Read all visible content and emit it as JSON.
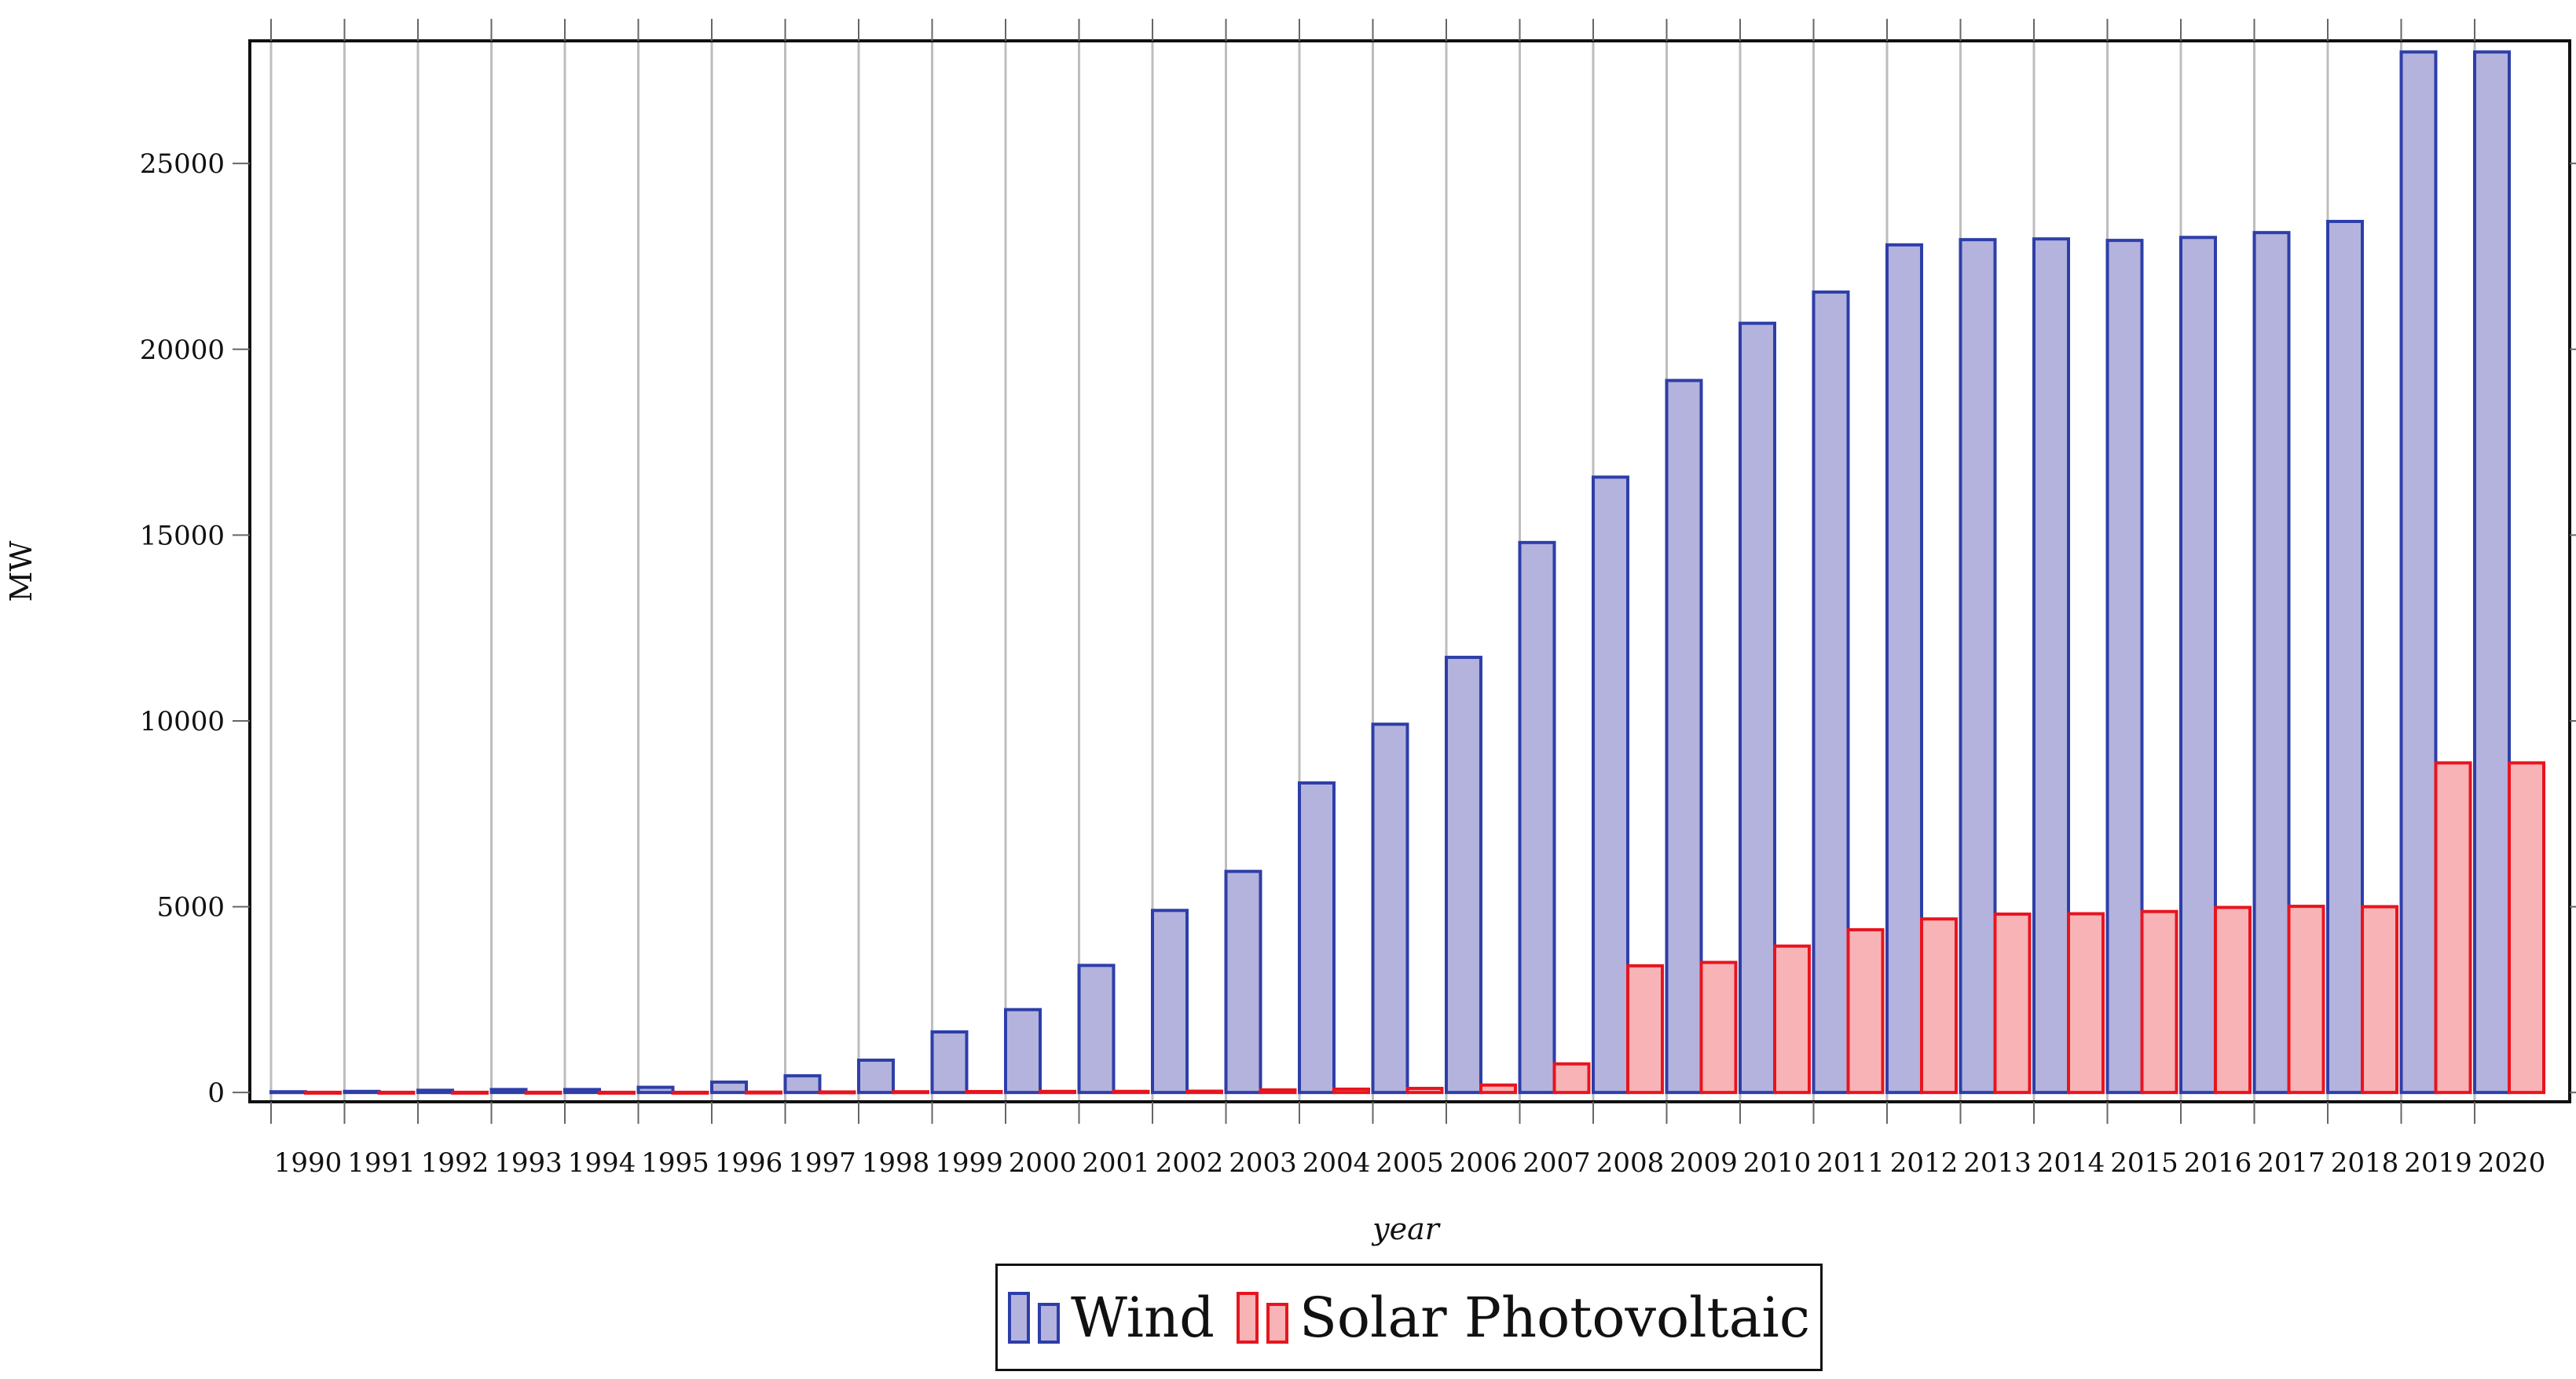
{
  "chart_data": {
    "type": "bar",
    "title": "",
    "xlabel": "year",
    "ylabel": "MW",
    "ylim": [
      -250,
      28300
    ],
    "yticks": [
      0,
      5000,
      10000,
      15000,
      20000,
      25000
    ],
    "grid": "vertical",
    "legend_position": "bottom-center",
    "categories": [
      "1990",
      "1991",
      "1992",
      "1993",
      "1994",
      "1995",
      "1996",
      "1997",
      "1998",
      "1999",
      "2000",
      "2001",
      "2002",
      "2003",
      "2004",
      "2005",
      "2006",
      "2007",
      "2008",
      "2009",
      "2010",
      "2011",
      "2012",
      "2013",
      "2014",
      "2015",
      "2016",
      "2017",
      "2018",
      "2019",
      "2020"
    ],
    "series": [
      {
        "name": "Wind",
        "color_fill": "#b3b3dd",
        "color_stroke": "#2e3ea8",
        "values": [
          20,
          30,
          60,
          80,
          80,
          140,
          280,
          450,
          870,
          1630,
          2230,
          3420,
          4900,
          5950,
          8330,
          9910,
          11710,
          14800,
          16560,
          19160,
          20700,
          21540,
          22810,
          22950,
          22970,
          22930,
          23010,
          23140,
          23440,
          28000,
          28000
        ]
      },
      {
        "name": "Solar Photovoltaic",
        "color_fill": "#f7b3b6",
        "color_stroke": "#e8141e",
        "values": [
          5,
          5,
          5,
          5,
          5,
          5,
          10,
          15,
          20,
          25,
          30,
          30,
          35,
          70,
          90,
          110,
          200,
          770,
          3410,
          3500,
          3940,
          4380,
          4670,
          4800,
          4810,
          4870,
          4980,
          5010,
          5000,
          8870,
          8870
        ]
      }
    ]
  }
}
